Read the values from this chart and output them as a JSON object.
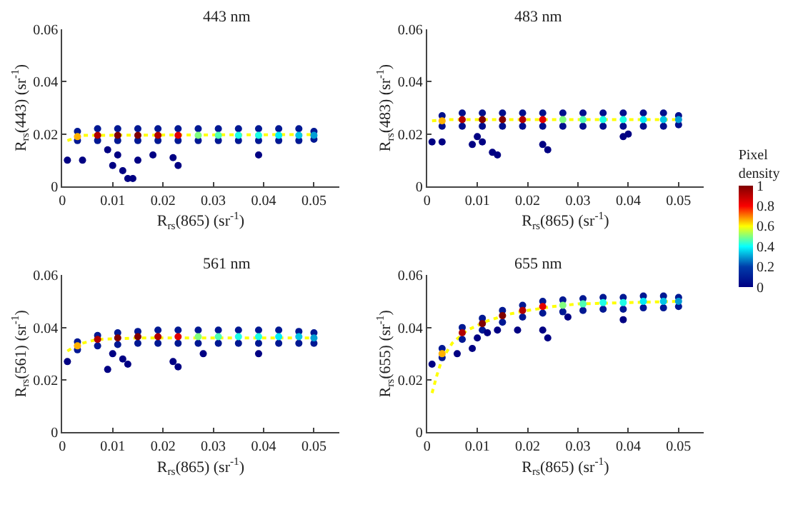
{
  "chart_data": [
    {
      "type": "scatter",
      "title": "443 nm",
      "xlabel": "R$_{rs}$(865) (sr$^{-1}$)",
      "ylabel": "R$_{rs}$(443) (sr$^{-1}$)",
      "xlim": [
        0,
        0.055
      ],
      "xticks": [
        0,
        0.01,
        0.02,
        0.03,
        0.04,
        0.05
      ],
      "ylim": [
        0,
        0.06
      ],
      "yticks": [
        0,
        0.02,
        0.04,
        0.06
      ],
      "grid": false,
      "marker": "circle",
      "x": [
        0.003,
        0.007,
        0.011,
        0.015,
        0.019,
        0.023,
        0.027,
        0.031,
        0.035,
        0.039,
        0.043,
        0.047,
        0.05
      ],
      "series": [
        {
          "color": "#001893",
          "values": [
            0.021,
            0.022,
            0.022,
            0.022,
            0.022,
            0.022,
            0.022,
            0.022,
            0.022,
            0.022,
            0.022,
            0.022,
            0.021
          ]
        },
        {
          "color": "#001893",
          "values": [
            0.0175,
            0.0175,
            0.0175,
            0.0175,
            0.0175,
            0.0175,
            0.0175,
            0.0175,
            0.0175,
            0.0175,
            0.0175,
            0.0175,
            0.018
          ]
        },
        {
          "values": [
            0.019,
            0.0195,
            0.0195,
            0.0195,
            0.0195,
            0.0195,
            0.0195,
            0.0195,
            0.0195,
            0.0195,
            0.0195,
            0.0195,
            0.0195
          ],
          "colors": [
            "#ffb200",
            "#b10000",
            "#800000",
            "#800000",
            "#b10000",
            "#e20000",
            "#82ff80",
            "#50ffb3",
            "#1effe6",
            "#1effe6",
            "#04ecf6",
            "#04c5e6",
            "#039ed5"
          ]
        },
        {
          "color": "#000083",
          "x": [
            0.001,
            0.004,
            0.009,
            0.01,
            0.011,
            0.012,
            0.013,
            0.014,
            0.015,
            0.018,
            0.022,
            0.023,
            0.039
          ],
          "values": [
            0.01,
            0.01,
            0.014,
            0.008,
            0.012,
            0.006,
            0.003,
            0.003,
            0.01,
            0.012,
            0.011,
            0.008,
            0.012
          ]
        },
        {
          "type": "line",
          "marker": "none",
          "color": "#ffff00",
          "line_style": "dotted",
          "x": [
            0.001,
            0.004,
            0.05
          ],
          "values": [
            0.0175,
            0.0195,
            0.0198
          ]
        }
      ]
    },
    {
      "type": "scatter",
      "title": "483 nm",
      "xlabel": "R$_{rs}$(865) (sr$^{-1}$)",
      "ylabel": "R$_{rs}$(483) (sr$^{-1}$)",
      "xlim": [
        0,
        0.055
      ],
      "xticks": [
        0,
        0.01,
        0.02,
        0.03,
        0.04,
        0.05
      ],
      "ylim": [
        0,
        0.06
      ],
      "yticks": [
        0,
        0.02,
        0.04,
        0.06
      ],
      "grid": false,
      "marker": "circle",
      "clabel": "Pixel density",
      "clim": [
        0,
        1
      ],
      "cticks": [
        0,
        0.2,
        0.4,
        0.6,
        0.8,
        1
      ],
      "x": [
        0.003,
        0.007,
        0.011,
        0.015,
        0.019,
        0.023,
        0.027,
        0.031,
        0.035,
        0.039,
        0.043,
        0.047,
        0.05
      ],
      "series": [
        {
          "values": [
            0.027,
            0.028,
            0.028,
            0.028,
            0.028,
            0.028,
            0.028,
            0.028,
            0.028,
            0.028,
            0.028,
            0.028,
            0.027
          ],
          "cvalues": [
            0.05,
            0.05,
            0.05,
            0.05,
            0.05,
            0.05,
            0.05,
            0.05,
            0.05,
            0.05,
            0.05,
            0.05,
            0.05
          ]
        },
        {
          "values": [
            0.023,
            0.023,
            0.023,
            0.023,
            0.023,
            0.023,
            0.023,
            0.023,
            0.023,
            0.023,
            0.023,
            0.023,
            0.0235
          ],
          "cvalues": [
            0.05,
            0.05,
            0.05,
            0.05,
            0.05,
            0.05,
            0.05,
            0.05,
            0.05,
            0.05,
            0.05,
            0.05,
            0.05
          ]
        },
        {
          "values": [
            0.025,
            0.0255,
            0.0255,
            0.0255,
            0.0255,
            0.0255,
            0.0255,
            0.0255,
            0.0255,
            0.0255,
            0.0255,
            0.0255,
            0.0255
          ],
          "colors": [
            "#ffb200",
            "#b10000",
            "#800000",
            "#800000",
            "#b10000",
            "#e20000",
            "#82ff80",
            "#50ffb3",
            "#1effe6",
            "#1effe6",
            "#04ecf6",
            "#04c5e6",
            "#039ed5"
          ]
        },
        {
          "x": [
            0.001,
            0.003,
            0.009,
            0.01,
            0.011,
            0.013,
            0.014,
            0.023,
            0.024,
            0.039,
            0.04
          ],
          "values": [
            0.017,
            0.017,
            0.016,
            0.019,
            0.017,
            0.013,
            0.012,
            0.016,
            0.014,
            0.019,
            0.02
          ],
          "cvalues": [
            0,
            0,
            0,
            0,
            0,
            0,
            0,
            0,
            0,
            0,
            0
          ]
        },
        {
          "type": "line",
          "marker": "none",
          "color": "#ffff00",
          "line_style": "dotted",
          "x": [
            0.001,
            0.004,
            0.05
          ],
          "values": [
            0.025,
            0.0255,
            0.0255
          ]
        }
      ]
    },
    {
      "type": "scatter",
      "title": "561 nm",
      "xlabel": "R$_{rs}$(865) (sr$^{-1}$)",
      "ylabel": "R$_{rs}$(561) (sr$^{-1}$)",
      "xlim": [
        0,
        0.055
      ],
      "xticks": [
        0,
        0.01,
        0.02,
        0.03,
        0.04,
        0.05
      ],
      "ylim": [
        0,
        0.06
      ],
      "yticks": [
        0,
        0.02,
        0.04,
        0.06
      ],
      "grid": false,
      "marker": "circle",
      "x": [
        0.003,
        0.007,
        0.011,
        0.015,
        0.019,
        0.023,
        0.027,
        0.031,
        0.035,
        0.039,
        0.043,
        0.047,
        0.05
      ],
      "series": [
        {
          "color": "#001893",
          "values": [
            0.0345,
            0.037,
            0.038,
            0.0385,
            0.039,
            0.039,
            0.039,
            0.039,
            0.039,
            0.039,
            0.039,
            0.0385,
            0.038
          ]
        },
        {
          "color": "#001893",
          "values": [
            0.0315,
            0.033,
            0.0335,
            0.034,
            0.034,
            0.034,
            0.034,
            0.034,
            0.034,
            0.034,
            0.034,
            0.034,
            0.034
          ]
        },
        {
          "values": [
            0.033,
            0.0355,
            0.036,
            0.0365,
            0.0365,
            0.0365,
            0.0365,
            0.0365,
            0.0365,
            0.0365,
            0.0365,
            0.0365,
            0.036
          ],
          "colors": [
            "#ffb200",
            "#b10000",
            "#800000",
            "#800000",
            "#b10000",
            "#e20000",
            "#82ff80",
            "#50ffb3",
            "#1effe6",
            "#1effe6",
            "#04ecf6",
            "#04c5e6",
            "#039ed5"
          ]
        },
        {
          "color": "#000083",
          "x": [
            0.001,
            0.009,
            0.01,
            0.012,
            0.013,
            0.022,
            0.023,
            0.028,
            0.039
          ],
          "values": [
            0.027,
            0.024,
            0.03,
            0.028,
            0.026,
            0.027,
            0.025,
            0.03,
            0.03
          ]
        },
        {
          "type": "line",
          "marker": "none",
          "color": "#ffff00",
          "line_style": "dotted",
          "x": [
            0.001,
            0.003,
            0.007,
            0.015,
            0.05
          ],
          "values": [
            0.031,
            0.0335,
            0.0355,
            0.036,
            0.036
          ]
        }
      ]
    },
    {
      "type": "scatter",
      "title": "655 nm",
      "xlabel": "R$_{rs}$(865) (sr$^{-1}$)",
      "ylabel": "R$_{rs}$(655) (sr$^{-1}$)",
      "xlim": [
        0,
        0.055
      ],
      "xticks": [
        0,
        0.01,
        0.02,
        0.03,
        0.04,
        0.05
      ],
      "ylim": [
        0,
        0.06
      ],
      "yticks": [
        0,
        0.02,
        0.04,
        0.06
      ],
      "grid": false,
      "marker": "circle",
      "x": [
        0.003,
        0.007,
        0.011,
        0.015,
        0.019,
        0.023,
        0.027,
        0.031,
        0.035,
        0.039,
        0.043,
        0.047,
        0.05
      ],
      "series": [
        {
          "color": "#001893",
          "values": [
            0.032,
            0.04,
            0.0435,
            0.0465,
            0.0485,
            0.05,
            0.0505,
            0.051,
            0.0515,
            0.0515,
            0.052,
            0.052,
            0.0515
          ]
        },
        {
          "color": "#001893",
          "values": [
            0.0285,
            0.0355,
            0.039,
            0.042,
            0.044,
            0.0455,
            0.046,
            0.0465,
            0.047,
            0.047,
            0.0475,
            0.0475,
            0.048
          ]
        },
        {
          "values": [
            0.03,
            0.038,
            0.0415,
            0.0445,
            0.0465,
            0.048,
            0.0485,
            0.049,
            0.0495,
            0.0495,
            0.05,
            0.05,
            0.05
          ],
          "colors": [
            "#ffb200",
            "#b10000",
            "#800000",
            "#800000",
            "#b10000",
            "#e20000",
            "#82ff80",
            "#50ffb3",
            "#1effe6",
            "#1effe6",
            "#04ecf6",
            "#04c5e6",
            "#039ed5"
          ]
        },
        {
          "color": "#000083",
          "x": [
            0.001,
            0.006,
            0.009,
            0.01,
            0.012,
            0.014,
            0.018,
            0.023,
            0.024,
            0.028,
            0.039
          ],
          "values": [
            0.026,
            0.03,
            0.032,
            0.036,
            0.038,
            0.039,
            0.039,
            0.039,
            0.036,
            0.044,
            0.043
          ]
        },
        {
          "type": "line",
          "marker": "none",
          "color": "#ffff00",
          "line_style": "dotted",
          "x": [
            0.001,
            0.002,
            0.003,
            0.005,
            0.008,
            0.012,
            0.016,
            0.02,
            0.025,
            0.03,
            0.04,
            0.05
          ],
          "values": [
            0.015,
            0.022,
            0.028,
            0.034,
            0.039,
            0.0425,
            0.045,
            0.0465,
            0.048,
            0.049,
            0.0495,
            0.05
          ]
        }
      ]
    }
  ]
}
